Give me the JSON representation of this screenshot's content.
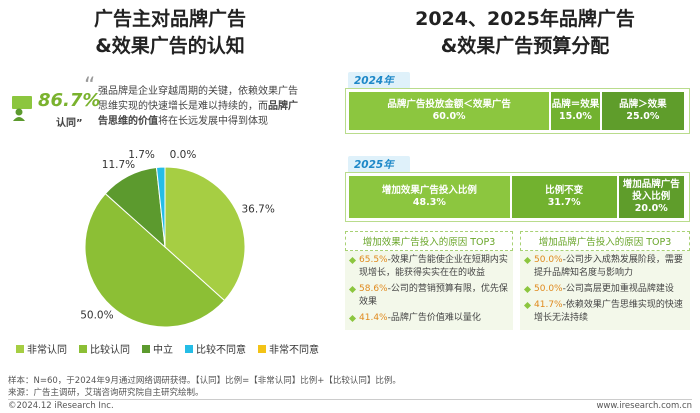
{
  "left": {
    "title": [
      "广告主对品牌广告",
      "&效果广告的认知"
    ],
    "stat": "86.7%",
    "stat_label": "认同”",
    "quote": [
      "强品牌是企业穿越周期的关键，依赖效果广告思维实现的快速增长是难以持续的，而",
      "品牌广告思维的价值",
      "将在长远发展中得到体现"
    ]
  },
  "right": {
    "title": [
      "2024、2025年品牌广告",
      "&效果广告预算分配"
    ],
    "reasons": [
      {
        "title": "增加效果广告投入的原因 TOP3",
        "items": [
          {
            "pct": "65.5%",
            "text": "-效果广告能使企业在短期内实现增长，能获得实实在在的收益"
          },
          {
            "pct": "58.6%",
            "text": "-公司的营销预算有限，优先保效果"
          },
          {
            "pct": "41.4%",
            "text": "-品牌广告价值难以量化"
          }
        ]
      },
      {
        "title": "增加品牌广告投入的原因 TOP3",
        "items": [
          {
            "pct": "50.0%",
            "text": "-公司步入成熟发展阶段，需要提升品牌知名度与影响力"
          },
          {
            "pct": "50.0%",
            "text": "-公司高层更加重视品牌建设"
          },
          {
            "pct": "41.7%",
            "text": "-依赖效果广告思维实现的快速增长无法持续"
          }
        ]
      }
    ]
  },
  "chart_data": [
    {
      "type": "pie",
      "categories": [
        "非常认同",
        "比较认同",
        "中立",
        "比较不同意",
        "非常不同意"
      ],
      "values": [
        36.7,
        50.0,
        11.7,
        1.7,
        0.0
      ],
      "value_labels": [
        "36.7%",
        "50.0%",
        "11.7%",
        "1.7%",
        "0.0%"
      ],
      "colors": [
        "#a6ce43",
        "#8cbf35",
        "#5c9a2e",
        "#25bde6",
        "#f3c316"
      ],
      "legend": "bottom"
    },
    {
      "type": "stacked-bar",
      "title": "2024年",
      "categories": [
        "品牌广告投放金额＜效果广告",
        "品牌＝效果",
        "品牌＞效果"
      ],
      "values": [
        60.0,
        15.0,
        25.0
      ],
      "value_labels": [
        "60.0%",
        "15.0%",
        "25.0%"
      ],
      "colors": [
        "#8cc63f",
        "#72b22f",
        "#5f9d2b"
      ]
    },
    {
      "type": "stacked-bar",
      "title": "2025年",
      "categories": [
        "增加效果广告投入比例",
        "比例不变",
        "增加品牌广告投入比例"
      ],
      "values": [
        48.3,
        31.7,
        20.0
      ],
      "value_labels": [
        "48.3%",
        "31.7%",
        "20.0%"
      ],
      "colors": [
        "#8cc63f",
        "#72b22f",
        "#5f9d2b"
      ]
    }
  ],
  "footer": {
    "note": "样本：N=60，于2024年9月通过网络调研获得。【认同】比例=【非常认同】比例+【比较认同】比例。",
    "source": "来源：广告主调研，艾瑞咨询研究院自主研究绘制。",
    "copyright": "©2024.12 iResearch Inc.",
    "url": "www.iresearch.com.cn"
  }
}
